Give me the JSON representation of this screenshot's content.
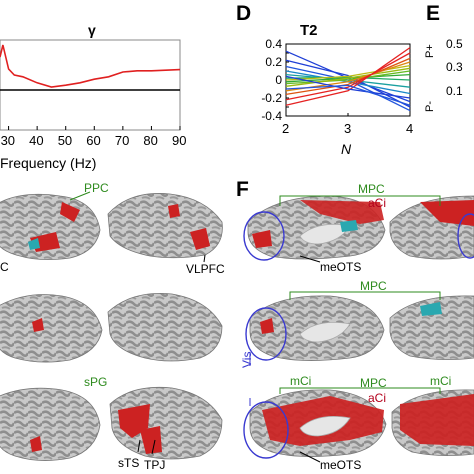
{
  "panels": {
    "d": "D",
    "e": "E",
    "f": "F"
  },
  "gamma_plot": {
    "title": "γ",
    "xlabel": "Frequency (Hz)",
    "x_ticks": [
      "30",
      "40",
      "50",
      "60",
      "70",
      "80",
      "90"
    ]
  },
  "chart_data": [
    {
      "type": "line",
      "title": "γ",
      "xlabel": "Frequency (Hz)",
      "xlim": [
        27,
        90
      ],
      "x": [
        27,
        28,
        30,
        32,
        35,
        40,
        45,
        50,
        55,
        60,
        65,
        70,
        75,
        80,
        85,
        90
      ],
      "series": [
        {
          "values": [
            0.55,
            0.75,
            0.35,
            0.25,
            0.22,
            0.12,
            0.05,
            0.08,
            0.12,
            0.18,
            0.22,
            0.3,
            0.32,
            0.32,
            0.33,
            0.34
          ]
        }
      ]
    },
    {
      "type": "line",
      "title": "T2",
      "xlabel": "N",
      "x": [
        2,
        3,
        4
      ],
      "ylim": [
        -0.4,
        0.4
      ],
      "y_ticks": [
        "0.4",
        "0.3",
        "0.2",
        "0.1",
        "0",
        "-0.1",
        "-0.2",
        "-0.3",
        "-0.4"
      ],
      "x_ticks": [
        "2",
        "3",
        "4"
      ],
      "series": [
        {
          "color": "#1f3fd6",
          "values": [
            0.32,
            0.02,
            -0.24
          ]
        },
        {
          "color": "#1f3fd6",
          "values": [
            0.22,
            0.05,
            -0.3
          ]
        },
        {
          "color": "#2255dd",
          "values": [
            0.15,
            0.0,
            -0.34
          ]
        },
        {
          "color": "#1a88c8",
          "values": [
            0.1,
            -0.02,
            -0.15
          ]
        },
        {
          "color": "#1aa0a0",
          "values": [
            0.06,
            0.0,
            -0.08
          ]
        },
        {
          "color": "#22aa66",
          "values": [
            0.02,
            0.03,
            0.0
          ]
        },
        {
          "color": "#33aa33",
          "values": [
            -0.02,
            0.02,
            0.06
          ]
        },
        {
          "color": "#66bb22",
          "values": [
            -0.04,
            0.0,
            0.1
          ]
        },
        {
          "color": "#99bb11",
          "values": [
            -0.07,
            0.02,
            0.13
          ]
        },
        {
          "color": "#bbbb11",
          "values": [
            0.0,
            0.04,
            0.16
          ]
        },
        {
          "color": "#dd8811",
          "values": [
            -0.12,
            -0.02,
            0.2
          ]
        },
        {
          "color": "#dd5511",
          "values": [
            -0.16,
            -0.05,
            0.24
          ]
        },
        {
          "color": "#e52222",
          "values": [
            -0.22,
            -0.08,
            0.3
          ]
        },
        {
          "color": "#e52222",
          "values": [
            -0.28,
            -0.12,
            0.36
          ]
        },
        {
          "color": "#1f3fd6",
          "values": [
            0.04,
            -0.1,
            -0.2
          ]
        },
        {
          "color": "#2255dd",
          "values": [
            -0.1,
            -0.06,
            -0.28
          ]
        }
      ]
    }
  ],
  "panel_d": {
    "title": "T2",
    "xlabel": "N",
    "y_ticks": [
      "0.4",
      "0.3",
      "0.2",
      "0.1",
      "0",
      "-0.1",
      "-0.2",
      "-0.3",
      "-0.4"
    ],
    "x_ticks": [
      "2",
      "3",
      "4"
    ]
  },
  "panel_e": {
    "p_plus": "P+",
    "p_minus": "P-",
    "ticks": [
      "0.5",
      "0.3",
      "0.1"
    ]
  },
  "brain_labels": {
    "ppc": "PPC",
    "c_left": "C",
    "vlpfc": "VLPFC",
    "spg": "sPG",
    "sts": "sTS",
    "tpj": "TPJ",
    "mpc_1": "MPC",
    "aci_1": "aCi",
    "meots_1": "meOTS",
    "mpc_2": "MPC",
    "vis": "Vis",
    "mci_1": "mCi",
    "mpc_3": "MPC",
    "mci_2": "mCi",
    "aci_2": "aCi",
    "meots_2": "meOTS"
  },
  "colors": {
    "red_line": "#e02020",
    "cortex_light": "#c9c9c9",
    "cortex_dark": "#8e8e8e",
    "activation_red": "#cc2222",
    "activation_cyan": "#2aa8b0",
    "outline_blue": "#3a3ad0",
    "label_green": "#2e8b1e",
    "label_red": "#b3001b"
  }
}
